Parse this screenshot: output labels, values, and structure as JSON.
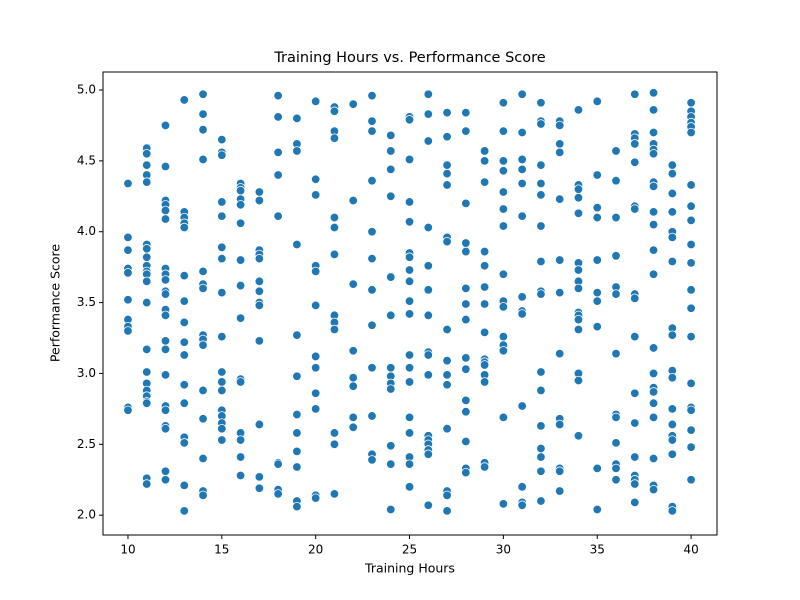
{
  "chart_data": {
    "type": "scatter",
    "title": "Training Hours vs. Performance Score",
    "x_label": "Training Hours",
    "y_label": "Performance Score",
    "color": "#1f77b4",
    "xlim": [
      8.67,
      41.38
    ],
    "ylim": [
      1.86,
      5.127
    ],
    "xticks": [
      10,
      15,
      20,
      25,
      30,
      35,
      40
    ],
    "yticks": [
      {
        "value": 2,
        "label": "2.0"
      },
      2.5,
      {
        "value": 3,
        "label": "3.0"
      },
      3.5,
      {
        "value": 4,
        "label": "4.0"
      },
      4.5,
      {
        "value": 5,
        "label": "5.0"
      }
    ],
    "x": [
      10,
      10,
      10,
      10,
      10,
      10,
      10,
      10,
      10,
      10,
      10,
      11,
      11,
      11,
      11,
      11,
      11,
      11,
      11,
      11,
      11,
      11,
      11,
      11,
      11,
      11,
      11,
      11,
      11,
      11,
      11,
      11,
      11,
      12,
      12,
      12,
      12,
      12,
      12,
      12,
      12,
      12,
      12,
      12,
      12,
      12,
      12,
      12,
      12,
      12,
      12,
      12,
      12,
      12,
      12,
      13,
      13,
      13,
      13,
      13,
      13,
      13,
      13,
      13,
      13,
      13,
      13,
      13,
      13,
      13,
      13,
      14,
      14,
      14,
      14,
      14,
      14,
      14,
      14,
      14,
      14,
      14,
      14,
      14,
      14,
      14,
      15,
      15,
      15,
      15,
      15,
      15,
      15,
      15,
      15,
      15,
      15,
      15,
      15,
      15,
      15,
      15,
      15,
      16,
      16,
      16,
      16,
      16,
      16,
      16,
      16,
      16,
      16,
      16,
      16,
      16,
      16,
      16,
      17,
      17,
      17,
      17,
      17,
      17,
      17,
      17,
      17,
      17,
      17,
      17,
      17,
      18,
      18,
      18,
      18,
      18,
      18,
      18,
      18,
      18,
      19,
      19,
      19,
      19,
      19,
      19,
      19,
      19,
      19,
      19,
      19,
      19,
      20,
      20,
      20,
      20,
      20,
      20,
      20,
      20,
      20,
      20,
      20,
      20,
      21,
      21,
      21,
      21,
      21,
      21,
      21,
      21,
      21,
      21,
      21,
      21,
      21,
      22,
      22,
      22,
      22,
      22,
      22,
      22,
      22,
      23,
      23,
      23,
      23,
      23,
      23,
      23,
      23,
      23,
      23,
      23,
      23,
      24,
      24,
      24,
      24,
      24,
      24,
      24,
      24,
      24,
      24,
      24,
      24,
      24,
      25,
      25,
      25,
      25,
      25,
      25,
      25,
      25,
      25,
      25,
      25,
      25,
      25,
      25,
      25,
      25,
      25,
      25,
      25,
      26,
      26,
      26,
      26,
      26,
      26,
      26,
      26,
      26,
      26,
      26,
      26,
      26,
      26,
      26,
      26,
      27,
      27,
      27,
      27,
      27,
      27,
      27,
      27,
      27,
      27,
      27,
      27,
      27,
      27,
      27,
      28,
      28,
      28,
      28,
      28,
      28,
      28,
      28,
      28,
      28,
      28,
      28,
      28,
      28,
      28,
      29,
      29,
      29,
      29,
      29,
      29,
      29,
      29,
      29,
      29,
      29,
      29,
      29,
      29,
      29,
      30,
      30,
      30,
      30,
      30,
      30,
      30,
      30,
      30,
      30,
      30,
      30,
      30,
      30,
      30,
      31,
      31,
      31,
      31,
      31,
      31,
      31,
      31,
      31,
      31,
      31,
      31,
      31,
      32,
      32,
      32,
      32,
      32,
      32,
      32,
      32,
      32,
      32,
      32,
      32,
      32,
      32,
      32,
      32,
      32,
      33,
      33,
      33,
      33,
      33,
      33,
      33,
      33,
      33,
      33,
      33,
      33,
      33,
      34,
      34,
      34,
      34,
      34,
      34,
      34,
      34,
      34,
      34,
      34,
      34,
      34,
      34,
      34,
      34,
      35,
      35,
      35,
      35,
      35,
      35,
      35,
      35,
      35,
      35,
      36,
      36,
      36,
      36,
      36,
      36,
      36,
      36,
      36,
      36,
      36,
      36,
      36,
      37,
      37,
      37,
      37,
      37,
      37,
      37,
      37,
      37,
      37,
      37,
      37,
      37,
      37,
      37,
      37,
      37,
      38,
      38,
      38,
      38,
      38,
      38,
      38,
      38,
      38,
      38,
      38,
      38,
      38,
      38,
      38,
      38,
      38,
      38,
      38,
      38,
      38,
      39,
      39,
      39,
      39,
      39,
      39,
      39,
      39,
      39,
      39,
      39,
      39,
      39,
      39,
      39,
      39,
      39,
      39,
      40,
      40,
      40,
      40,
      40,
      40,
      40,
      40,
      40,
      40,
      40,
      40,
      40,
      40,
      40,
      40,
      40,
      40,
      40,
      40
    ],
    "y": [
      4.34,
      3.96,
      3.87,
      3.74,
      3.71,
      3.52,
      3.38,
      3.33,
      3.3,
      2.76,
      2.74,
      4.59,
      4.55,
      4.47,
      4.4,
      4.35,
      3.91,
      3.88,
      3.82,
      3.76,
      3.72,
      3.7,
      3.65,
      3.5,
      3.17,
      3.01,
      2.93,
      2.88,
      2.84,
      2.8,
      2.79,
      2.26,
      2.22,
      4.75,
      4.46,
      4.22,
      4.19,
      4.15,
      4.09,
      3.74,
      3.7,
      3.66,
      3.58,
      3.56,
      3.45,
      3.41,
      3.23,
      3.17,
      2.99,
      2.77,
      2.74,
      2.63,
      2.61,
      2.31,
      2.25,
      4.93,
      4.14,
      4.1,
      4.06,
      4.03,
      3.69,
      3.51,
      3.36,
      3.22,
      3.13,
      2.92,
      2.79,
      2.55,
      2.51,
      2.21,
      2.03,
      4.97,
      4.83,
      4.72,
      4.51,
      3.72,
      3.63,
      3.6,
      3.27,
      3.24,
      3.2,
      2.88,
      2.68,
      2.4,
      2.17,
      2.14,
      4.65,
      4.56,
      4.54,
      4.21,
      4.11,
      3.89,
      3.81,
      3.57,
      3.26,
      3.01,
      2.94,
      2.88,
      2.74,
      2.7,
      2.65,
      2.61,
      2.53,
      4.34,
      4.31,
      4.29,
      4.23,
      4.19,
      4.06,
      3.8,
      3.62,
      3.39,
      2.96,
      2.94,
      2.58,
      2.53,
      2.41,
      2.28,
      4.28,
      4.22,
      3.87,
      3.84,
      3.81,
      3.65,
      3.58,
      3.5,
      3.48,
      3.23,
      2.64,
      2.27,
      2.19,
      4.96,
      4.81,
      4.56,
      4.4,
      4.11,
      2.37,
      2.36,
      2.18,
      2.15,
      4.8,
      4.62,
      4.57,
      3.91,
      3.27,
      2.98,
      2.71,
      2.58,
      2.45,
      2.34,
      2.1,
      2.06,
      4.92,
      4.37,
      4.26,
      3.76,
      3.72,
      3.48,
      3.12,
      3.04,
      2.86,
      2.75,
      2.14,
      2.12,
      4.88,
      4.85,
      4.71,
      4.66,
      4.1,
      4.03,
      3.84,
      3.41,
      3.36,
      3.31,
      2.58,
      2.5,
      2.15,
      4.9,
      4.22,
      3.63,
      3.16,
      2.97,
      2.91,
      2.69,
      2.62,
      4.96,
      4.78,
      4.71,
      4.36,
      4.0,
      3.81,
      3.59,
      3.34,
      3.04,
      2.7,
      2.43,
      2.39,
      4.68,
      4.57,
      4.44,
      4.25,
      3.68,
      3.41,
      3.04,
      2.98,
      2.93,
      2.89,
      2.49,
      2.36,
      2.04,
      4.81,
      4.79,
      4.51,
      4.21,
      4.07,
      3.85,
      3.82,
      3.73,
      3.65,
      3.51,
      3.42,
      3.13,
      3.04,
      2.94,
      2.69,
      2.58,
      2.41,
      2.36,
      2.2,
      4.97,
      4.83,
      4.64,
      4.03,
      3.76,
      3.59,
      3.41,
      3.15,
      3.13,
      2.99,
      2.56,
      2.53,
      2.5,
      2.46,
      2.43,
      2.07,
      4.84,
      4.67,
      4.47,
      4.41,
      4.33,
      3.96,
      3.93,
      3.31,
      3.09,
      2.99,
      2.92,
      2.61,
      2.17,
      2.14,
      2.03,
      4.84,
      4.71,
      4.2,
      3.92,
      3.86,
      3.6,
      3.49,
      3.38,
      3.11,
      3.03,
      2.81,
      2.73,
      2.52,
      2.33,
      2.3,
      4.57,
      4.5,
      4.35,
      3.86,
      3.76,
      3.61,
      3.49,
      3.29,
      3.1,
      3.08,
      3.06,
      2.99,
      2.94,
      2.37,
      2.34,
      4.91,
      4.71,
      4.5,
      4.43,
      4.28,
      4.16,
      4.04,
      3.7,
      3.51,
      3.47,
      3.26,
      3.2,
      3.16,
      2.69,
      2.08,
      4.97,
      4.7,
      4.51,
      4.44,
      4.34,
      4.11,
      3.54,
      3.44,
      3.42,
      2.77,
      2.2,
      2.09,
      2.07,
      4.91,
      4.78,
      4.76,
      4.47,
      4.34,
      4.26,
      4.04,
      3.79,
      3.58,
      3.56,
      3.01,
      2.88,
      2.63,
      2.47,
      2.41,
      2.31,
      2.1,
      4.78,
      4.75,
      4.62,
      4.56,
      4.23,
      3.8,
      3.57,
      3.14,
      2.68,
      2.64,
      2.33,
      2.31,
      2.17,
      4.86,
      4.33,
      4.3,
      4.24,
      4.13,
      3.78,
      3.73,
      3.65,
      3.6,
      3.43,
      3.41,
      3.38,
      3.31,
      3.0,
      2.95,
      2.56,
      4.92,
      4.4,
      4.17,
      4.1,
      3.8,
      3.57,
      3.51,
      3.33,
      2.33,
      2.04,
      4.57,
      4.36,
      4.1,
      3.83,
      3.61,
      3.56,
      3.14,
      2.71,
      2.69,
      2.51,
      2.36,
      2.33,
      2.25,
      4.97,
      4.69,
      4.66,
      4.62,
      4.49,
      4.18,
      4.16,
      3.56,
      3.53,
      3.26,
      2.86,
      2.65,
      2.41,
      2.28,
      2.25,
      2.22,
      2.09,
      4.98,
      4.86,
      4.7,
      4.62,
      4.58,
      4.55,
      4.35,
      4.32,
      4.14,
      4.05,
      3.87,
      3.7,
      3.18,
      3.0,
      2.9,
      2.87,
      2.79,
      2.69,
      2.4,
      2.21,
      2.18,
      4.47,
      4.41,
      4.27,
      4.14,
      4.0,
      3.96,
      3.79,
      3.32,
      3.27,
      3.02,
      2.97,
      2.75,
      2.64,
      2.56,
      2.53,
      2.43,
      2.06,
      2.03,
      4.91,
      4.85,
      4.81,
      4.77,
      4.74,
      4.7,
      4.33,
      4.18,
      4.08,
      3.91,
      3.78,
      3.59,
      3.46,
      3.26,
      2.93,
      2.76,
      2.74,
      2.6,
      2.48,
      2.25
    ]
  }
}
